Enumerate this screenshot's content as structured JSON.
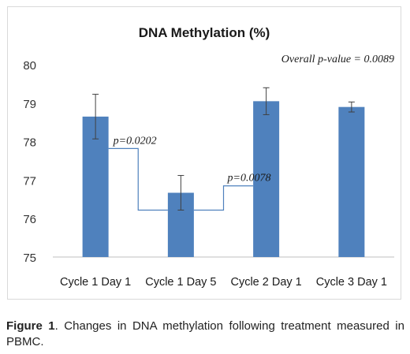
{
  "chart_data": {
    "type": "bar",
    "title": "DNA Methylation (%)",
    "xlabel": "",
    "ylabel": "",
    "categories": [
      "Cycle 1 Day 1",
      "Cycle 1 Day 5",
      "Cycle 2 Day 1",
      "Cycle 3 Day 1"
    ],
    "values": [
      78.65,
      76.67,
      79.05,
      78.9
    ],
    "errors": [
      0.58,
      0.45,
      0.35,
      0.13
    ],
    "ylim": [
      75,
      80
    ],
    "yticks": [
      75,
      76,
      77,
      78,
      79,
      80
    ],
    "grid": false,
    "legend": "none",
    "bar_color": "#4f81bd",
    "annotations": [
      {
        "text": "Overall p-value = 0.0089"
      },
      {
        "text": "p=0.0202",
        "between": [
          0,
          1
        ]
      },
      {
        "text": "p=0.0078",
        "between": [
          1,
          2
        ]
      }
    ]
  },
  "caption": {
    "label": "Figure 1",
    "text": ". Changes in DNA methylation following treatment measured in PBMC."
  }
}
